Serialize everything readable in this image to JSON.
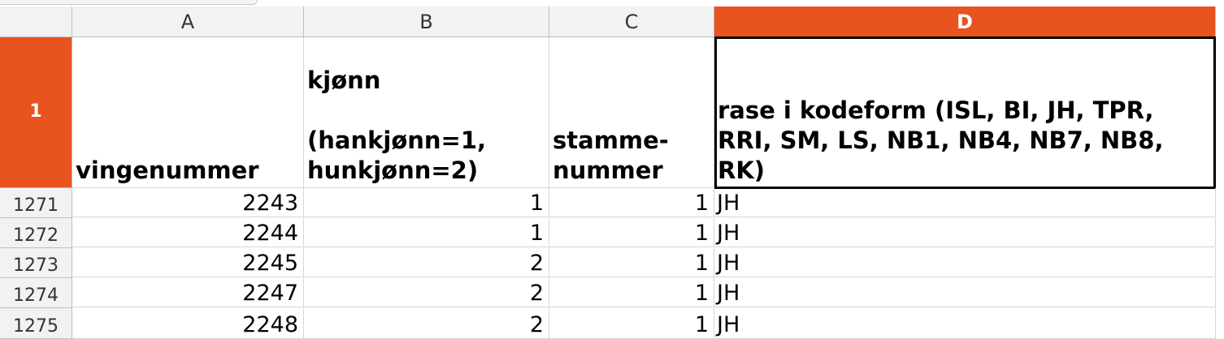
{
  "columns": {
    "A": "A",
    "B": "B",
    "C": "C",
    "D": "D"
  },
  "header_row": {
    "row_number": "1",
    "a": "vingenummer",
    "b": "kjønn\n\n(hankjønn=1,\nhunkjønn=2)",
    "c": "stamme-\nnummer",
    "d": "rase i kodeform (ISL, BI, JH, TPR, RRI, SM, LS, NB1, NB4, NB7, NB8, RK)"
  },
  "rows": [
    {
      "row_number": "1271",
      "a": "2243",
      "b": "1",
      "c": "1",
      "d": "JH"
    },
    {
      "row_number": "1272",
      "a": "2244",
      "b": "1",
      "c": "1",
      "d": "JH"
    },
    {
      "row_number": "1273",
      "a": "2245",
      "b": "2",
      "c": "1",
      "d": "JH"
    },
    {
      "row_number": "1274",
      "a": "2247",
      "b": "2",
      "c": "1",
      "d": "JH"
    },
    {
      "row_number": "1275",
      "a": "2248",
      "b": "2",
      "c": "1",
      "d": "JH"
    }
  ],
  "active_column": "D",
  "active_row": "1",
  "colors": {
    "active_header": "#e85320",
    "header_bg": "#f2f2f2",
    "gridline": "#d6d6d6"
  }
}
